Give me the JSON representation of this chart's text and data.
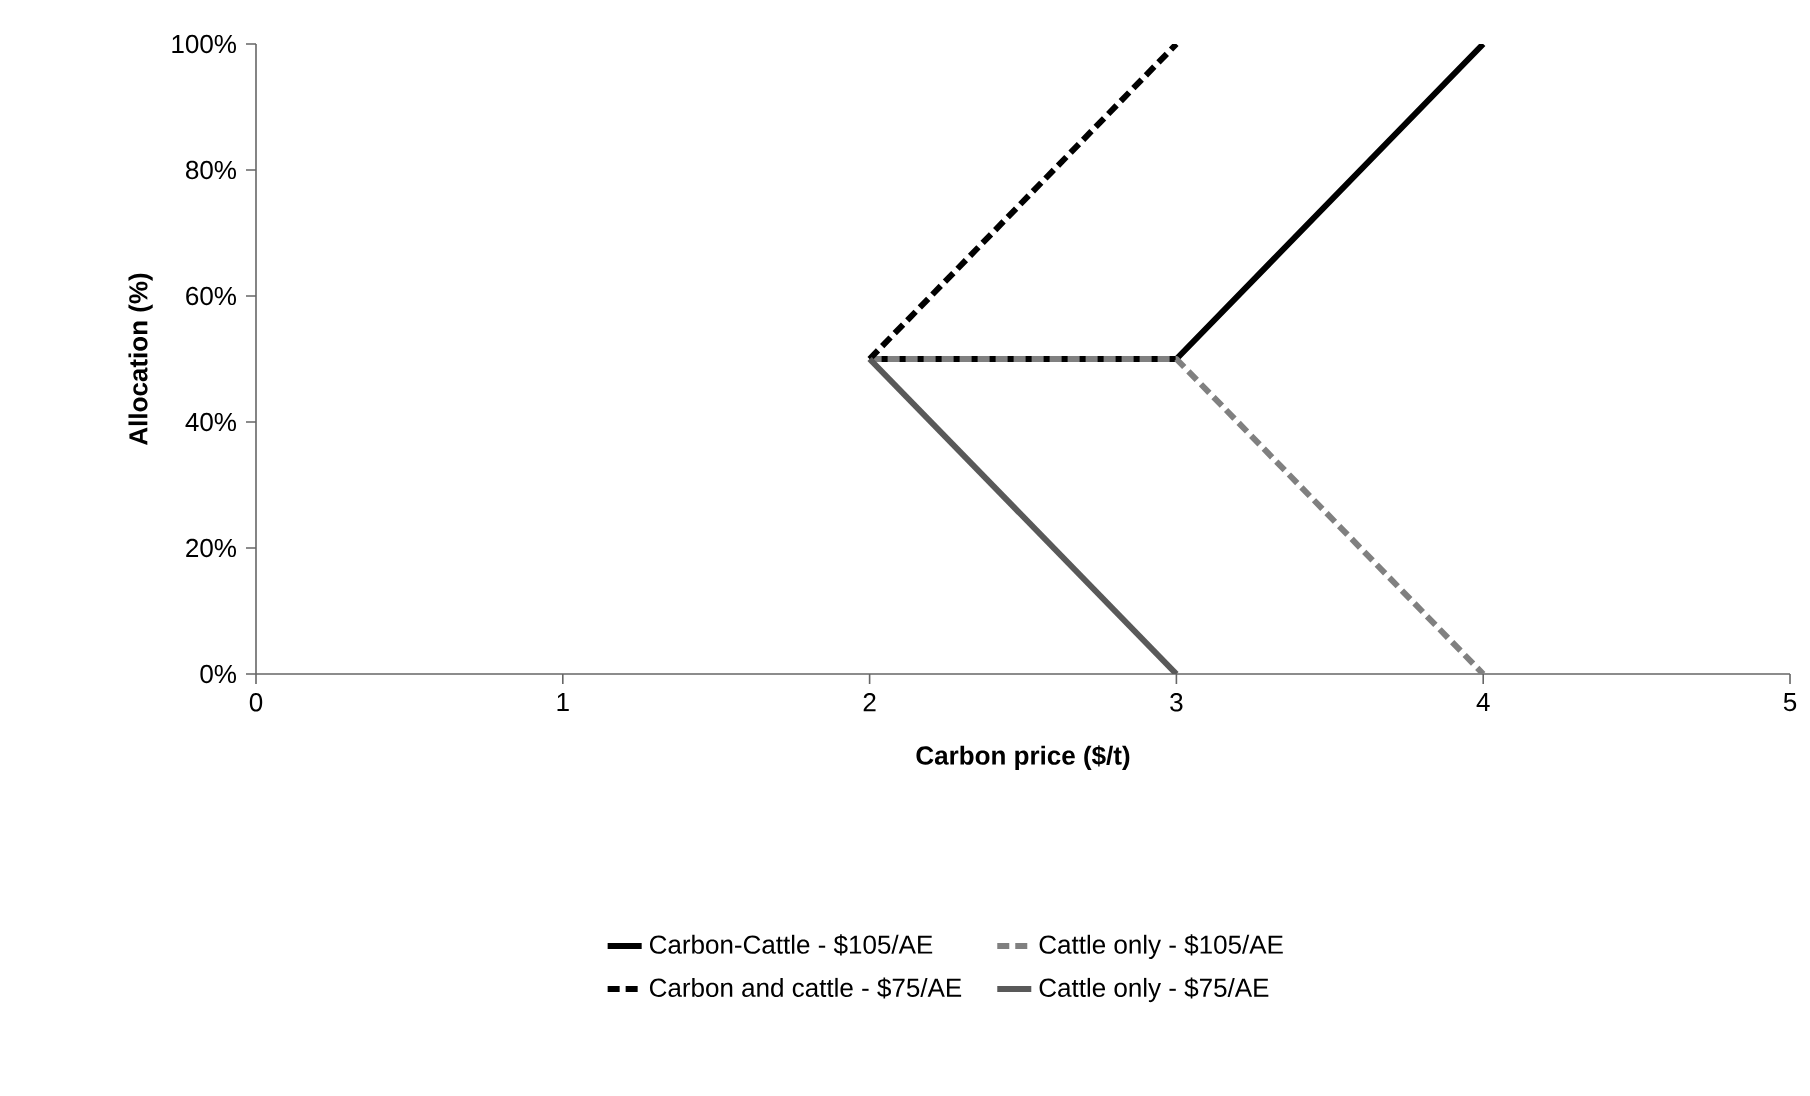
{
  "chart_data": {
    "type": "line",
    "xlabel": "Carbon price ($/t)",
    "ylabel": "Allocation (%)",
    "xlim": [
      0,
      5
    ],
    "xticks": [
      0,
      1,
      2,
      3,
      4,
      5
    ],
    "ylim": [
      0,
      100
    ],
    "yticks": [
      {
        "value": 0,
        "label": "0%"
      },
      {
        "value": 20,
        "label": "20%"
      },
      {
        "value": 40,
        "label": "40%"
      },
      {
        "value": 60,
        "label": "60%"
      },
      {
        "value": 80,
        "label": "80%"
      },
      {
        "value": 100,
        "label": "100%"
      }
    ],
    "grid": false,
    "legend": "bottom",
    "series": [
      {
        "name": "Carbon-Cattle - $105/AE",
        "color": "#000000",
        "line_style": "solid",
        "x": [
          2,
          3,
          4
        ],
        "values": [
          50,
          50,
          100
        ]
      },
      {
        "name": "Cattle only - $105/AE",
        "color": "#808080",
        "line_style": "dashed",
        "x": [
          2,
          3,
          4
        ],
        "values": [
          50,
          50,
          0
        ]
      },
      {
        "name": "Carbon and cattle - $75/AE",
        "color": "#000000",
        "line_style": "dashed",
        "x": [
          2,
          3
        ],
        "values": [
          50,
          100
        ]
      },
      {
        "name": "Cattle only - $75/AE",
        "color": "#595959",
        "line_style": "solid",
        "x": [
          2,
          3
        ],
        "values": [
          50,
          0
        ]
      }
    ]
  }
}
